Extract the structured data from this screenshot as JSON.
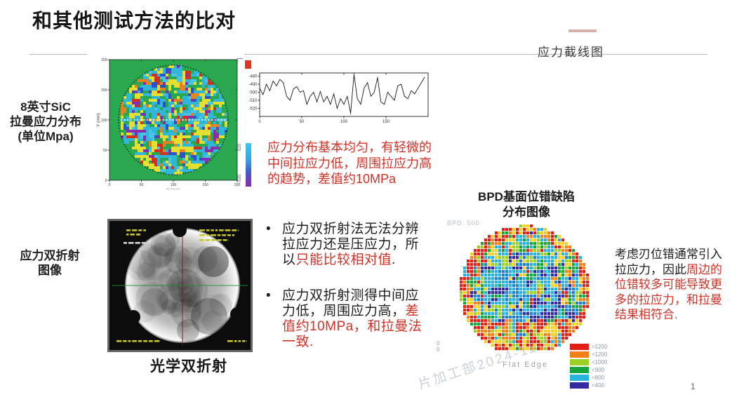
{
  "slide": {
    "title": "和其他测试方法的比对",
    "section_label": "应力截线图",
    "page_number": "1",
    "watermark": "片加工部2024-11-15",
    "stray": "0\n0"
  },
  "bullet_marker": "•",
  "raman": {
    "label": "8英寸SiC\n拉曼应力分布\n(单位Mpa)",
    "colorbar_top": "-520",
    "colorbar_bottom": "-530"
  },
  "notes": {
    "raman": "应力分布基本均匀，有轻微的\n中间拉应力低，周围拉应力高\n的趋势，差值约10MPa",
    "bpd_segments": [
      {
        "t": "考虑刃位错通常引入\n拉应力，因此",
        "c": "k"
      },
      {
        "t": "周边的\n位错较多可能导致更\n多的拉应力，和拉曼\n结果相符合.",
        "c": "r"
      }
    ]
  },
  "bullets": [
    {
      "segments": [
        {
          "t": "应力双折射法无法分辨\n拉应力还是压应力，所\n以",
          "c": "k"
        },
        {
          "t": "只能比较相对值",
          "c": "r"
        },
        {
          "t": ".",
          "c": "k"
        }
      ]
    },
    {
      "segments": [
        {
          "t": "应力双折射测得中间应\n力低，周围应力高，",
          "c": "k"
        },
        {
          "t": "差\n值约10MPa，和拉曼法\n一致.",
          "c": "r"
        }
      ]
    }
  ],
  "biref": {
    "label": "应力双折射\n图像",
    "caption": "光学双折射"
  },
  "bpd": {
    "title": "BPD基面位错缺陷\n分布图像",
    "corner_label": "BPD: 500",
    "flat_edge": "Flat Edge",
    "legend": [
      {
        "label": ">1200",
        "color": "#e02018"
      },
      {
        "label": "<1200",
        "color": "#f08018"
      },
      {
        "label": "<1000",
        "color": "#9cd022"
      },
      {
        "label": "<900",
        "color": "#18a43c"
      },
      {
        "label": "<800",
        "color": "#28b4dc"
      },
      {
        "label": "<400",
        "color": "#342ba0"
      }
    ]
  },
  "chart_data": [
    {
      "id": "raman_wafer_map",
      "type": "heatmap",
      "title": "8英寸SiC拉曼应力分布 (单位Mpa)",
      "xlabel": "X (mm)",
      "ylabel": "Y (mm)",
      "x_ticks": [
        0,
        50,
        100,
        150,
        200
      ],
      "y_ticks": [
        0,
        50,
        100,
        150,
        200
      ],
      "xlim": [
        0,
        200
      ],
      "ylim": [
        0,
        200
      ],
      "background_color": "#2aa84f",
      "wafer_radius_mm": 100,
      "cross_section_y_mm": 100,
      "palette": [
        "#2fb6d9",
        "#49c3e8",
        "#2aa84f",
        "#e5e030",
        "#2b52c8",
        "#8a2bb0",
        "#d43020",
        "#e8821e"
      ],
      "palette_weights": [
        0.3,
        0.08,
        0.17,
        0.22,
        0.07,
        0.06,
        0.05,
        0.05
      ],
      "colorbar_labels": [
        "-520",
        "-530"
      ],
      "description": "Speckled, roughly uniform stress map; slightly lower tensile stress in center, higher at periphery, difference about 10 MPa."
    },
    {
      "id": "stress_line_profile",
      "type": "line",
      "xlabel": "",
      "ylabel": "",
      "x_ticks": [
        0,
        50,
        100,
        150
      ],
      "y_ticks": [
        -480,
        -490,
        -500,
        -510,
        -520
      ],
      "xlim": [
        0,
        200
      ],
      "ylim": [
        -530,
        -476
      ],
      "x": [
        0,
        4,
        8,
        12,
        16,
        20,
        24,
        28,
        32,
        36,
        40,
        44,
        48,
        52,
        56,
        60,
        64,
        68,
        72,
        76,
        80,
        84,
        88,
        92,
        96,
        100,
        104,
        108,
        112,
        116,
        120,
        124,
        128,
        132,
        136,
        140,
        144,
        148,
        152,
        156,
        160,
        164,
        168,
        172,
        176,
        180,
        184,
        188,
        192,
        196
      ],
      "y": [
        -495,
        -503,
        -490,
        -498,
        -486,
        -492,
        -484,
        -488,
        -505,
        -510,
        -496,
        -493,
        -500,
        -498,
        -515,
        -505,
        -500,
        -512,
        -499,
        -512,
        -505,
        -515,
        -502,
        -520,
        -508,
        -515,
        -505,
        -526,
        -478,
        -508,
        -515,
        -495,
        -488,
        -505,
        -500,
        -482,
        -512,
        -515,
        -500,
        -505,
        -510,
        -492,
        -490,
        -505,
        -508,
        -498,
        -502,
        -495,
        -488,
        -481
      ]
    },
    {
      "id": "bpd_wafer_map",
      "type": "heatmap",
      "title": "BPD基面位错缺陷分布图像",
      "legend_labels": [
        ">1200",
        "<1200",
        "<1000",
        "<900",
        "<800",
        "<400"
      ],
      "legend_colors": [
        "#e02018",
        "#f08018",
        "#9cd022",
        "#18a43c",
        "#28b4dc",
        "#342ba0"
      ],
      "cell_colors": [
        "#e02018",
        "#f08018",
        "#f5d020",
        "#9cd022",
        "#18a43c",
        "#2ab0dc",
        "#1f7fd0",
        "#342ba0"
      ],
      "flat_edge": true,
      "description": "High BPD density (red/orange/yellow) around the wafer edge, especially the lower rim; low density (cyan/blue/navy) in the center."
    }
  ]
}
